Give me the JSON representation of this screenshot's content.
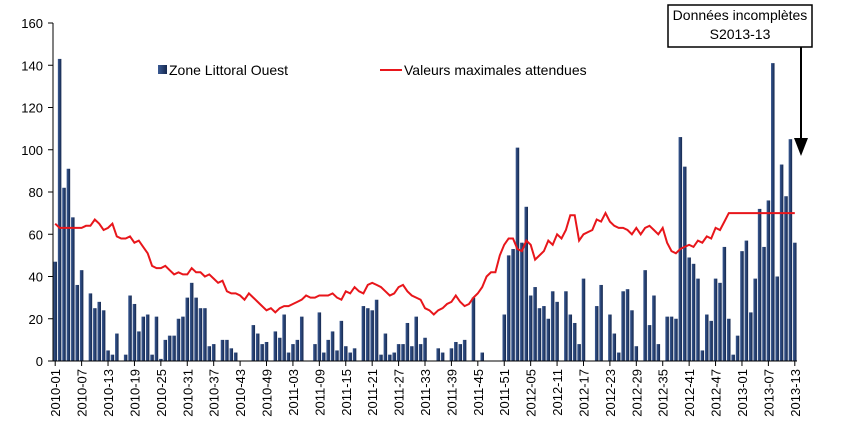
{
  "chart_data": {
    "type": "bar_line",
    "categories": [
      "2010-01",
      null,
      null,
      null,
      null,
      null,
      "2010-07",
      null,
      null,
      null,
      null,
      null,
      "2010-13",
      null,
      null,
      null,
      null,
      null,
      "2010-19",
      null,
      null,
      null,
      null,
      null,
      "2010-25",
      null,
      null,
      null,
      null,
      null,
      "2010-31",
      null,
      null,
      null,
      null,
      null,
      "2010-37",
      null,
      null,
      null,
      null,
      null,
      "2010-43",
      null,
      null,
      null,
      null,
      null,
      "2010-49",
      null,
      null,
      null,
      null,
      null,
      "2011-03",
      null,
      null,
      null,
      null,
      null,
      "2011-09",
      null,
      null,
      null,
      null,
      null,
      "2011-15",
      null,
      null,
      null,
      null,
      null,
      "2011-21",
      null,
      null,
      null,
      null,
      null,
      "2011-27",
      null,
      null,
      null,
      null,
      null,
      "2011-33",
      null,
      null,
      null,
      null,
      null,
      "2011-39",
      null,
      null,
      null,
      null,
      null,
      "2011-45",
      null,
      null,
      null,
      null,
      null,
      "2011-51",
      null,
      null,
      null,
      null,
      null,
      "2012-05",
      null,
      null,
      null,
      null,
      null,
      "2012-11",
      null,
      null,
      null,
      null,
      null,
      "2012-17",
      null,
      null,
      null,
      null,
      null,
      "2012-23",
      null,
      null,
      null,
      null,
      null,
      "2012-29",
      null,
      null,
      null,
      null,
      null,
      "2012-35",
      null,
      null,
      null,
      null,
      null,
      "2012-41",
      null,
      null,
      null,
      null,
      null,
      "2012-47",
      null,
      null,
      null,
      null,
      null,
      "2013-01",
      null,
      null,
      null,
      null,
      null,
      "2013-07",
      null,
      null,
      null,
      null,
      null,
      "2013-13"
    ],
    "series": [
      {
        "name": "Zone Littoral Ouest",
        "kind": "bar",
        "color": "#1f3a6e",
        "values": [
          47,
          143,
          82,
          91,
          68,
          36,
          43,
          0,
          32,
          25,
          28,
          24,
          5,
          3,
          13,
          0,
          3,
          31,
          27,
          14,
          21,
          22,
          3,
          21,
          1,
          10,
          12,
          12,
          20,
          21,
          30,
          37,
          30,
          25,
          25,
          7,
          8,
          0,
          10,
          10,
          6,
          4,
          0,
          0,
          0,
          17,
          13,
          8,
          9,
          0,
          14,
          11,
          22,
          4,
          8,
          10,
          21,
          0,
          0,
          8,
          23,
          4,
          10,
          14,
          5,
          19,
          7,
          4,
          6,
          0,
          26,
          25,
          24,
          29,
          3,
          13,
          3,
          4,
          8,
          8,
          18,
          7,
          21,
          8,
          11,
          0,
          0,
          6,
          4,
          0,
          6,
          9,
          8,
          10,
          0,
          30,
          0,
          4,
          0,
          0,
          0,
          0,
          22,
          50,
          53,
          101,
          56,
          73,
          31,
          35,
          25,
          26,
          20,
          33,
          28,
          0,
          33,
          22,
          18,
          8,
          39,
          0,
          0,
          26,
          36,
          0,
          22,
          13,
          4,
          33,
          34,
          24,
          7,
          0,
          43,
          17,
          31,
          8,
          0,
          21,
          21,
          20,
          106,
          92,
          49,
          46,
          39,
          5,
          22,
          19,
          39,
          37,
          54,
          20,
          3,
          12,
          52,
          57,
          23,
          39,
          72,
          54,
          76,
          141,
          40,
          93,
          78,
          105,
          56
        ]
      },
      {
        "name": "Valeurs maximales attendues",
        "kind": "line",
        "color": "#e8161b",
        "values": [
          65,
          63,
          63,
          63,
          63,
          63,
          63,
          64,
          64,
          67,
          65,
          62,
          63,
          65,
          59,
          58,
          58,
          59,
          56,
          57,
          54,
          51,
          45,
          44,
          44,
          45,
          43,
          41,
          42,
          41,
          41,
          44,
          42,
          42,
          40,
          41,
          39,
          37,
          38,
          33,
          32,
          32,
          31,
          29,
          32,
          30,
          28,
          26,
          24,
          25,
          23,
          25,
          26,
          26,
          27,
          28,
          29,
          31,
          30,
          30,
          31,
          31,
          31,
          32,
          30,
          29,
          33,
          32,
          35,
          33,
          32,
          36,
          37,
          36,
          35,
          33,
          31,
          32,
          35,
          36,
          33,
          31,
          30,
          29,
          25,
          24,
          22,
          24,
          25,
          27,
          28,
          31,
          28,
          26,
          27,
          30,
          32,
          35,
          40,
          42,
          42,
          50,
          55,
          58,
          58,
          53,
          52,
          57,
          55,
          48,
          50,
          52,
          57,
          55,
          60,
          58,
          62,
          69,
          69,
          57,
          60,
          61,
          62,
          67,
          66,
          70,
          66,
          64,
          63,
          63,
          62,
          60,
          63,
          60,
          63,
          64,
          62,
          60,
          63,
          56,
          52,
          51,
          53,
          54,
          55,
          54,
          57,
          56,
          59,
          58,
          63,
          62,
          66,
          70,
          70,
          70,
          70,
          70,
          70,
          70,
          70,
          70,
          70,
          70,
          70,
          70,
          70,
          70,
          70
        ]
      }
    ],
    "ylim": [
      0,
      160
    ],
    "yticks": [
      0,
      20,
      40,
      60,
      80,
      100,
      120,
      140,
      160
    ],
    "grid": false,
    "annotation": [
      "Données incomplètes",
      "S2013-13"
    ]
  }
}
